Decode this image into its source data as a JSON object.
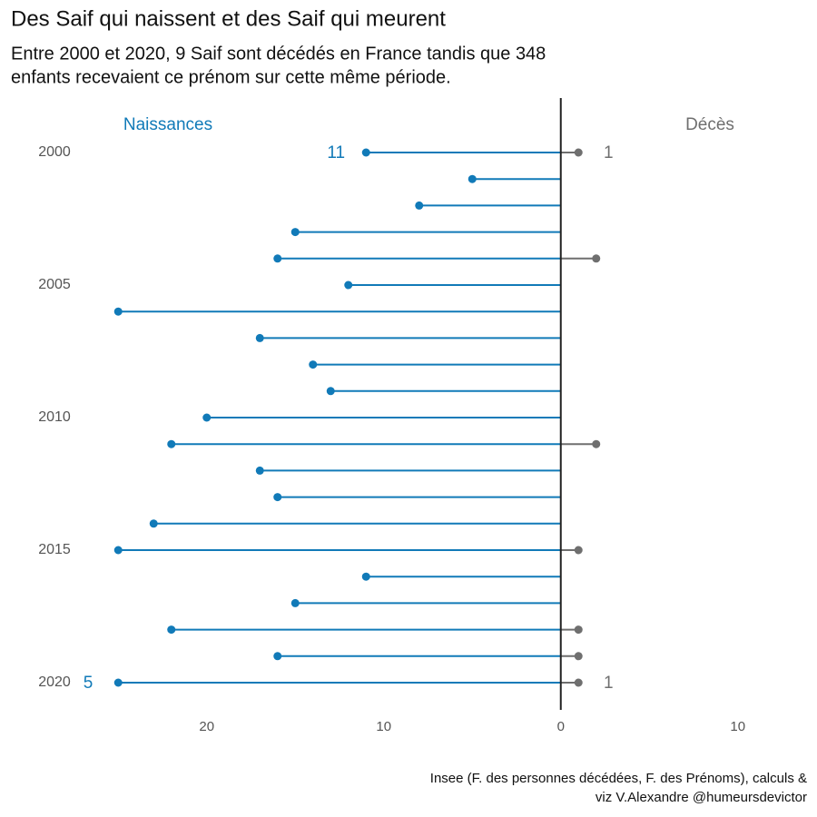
{
  "chart_data": {
    "type": "lollipop",
    "title": "Des Saif qui naissent et des Saif qui meurent",
    "subtitle": [
      "Entre 2000 et 2020, 9 Saif sont décédés en France tandis que 348",
      "enfants recevaient ce prénom sur cette même période."
    ],
    "caption": [
      "Insee (F. des personnes décédées, F. des Prénoms), calculs &",
      "viz V.Alexandre @humeursdevictor"
    ],
    "categories": [
      "2000",
      null,
      null,
      null,
      null,
      "2005",
      null,
      null,
      null,
      null,
      "2010",
      null,
      null,
      null,
      null,
      "2015",
      null,
      null,
      null,
      null,
      "2020"
    ],
    "series": [
      {
        "name": "Naissances",
        "color": "#117ab8",
        "side": "left",
        "values": [
          11,
          5,
          8,
          15,
          16,
          12,
          25,
          17,
          14,
          13,
          20,
          22,
          17,
          16,
          23,
          25,
          11,
          15,
          22,
          16,
          25
        ],
        "value_labels": [
          "11",
          null,
          null,
          null,
          null,
          null,
          null,
          null,
          null,
          null,
          null,
          null,
          null,
          null,
          null,
          null,
          null,
          null,
          null,
          null,
          null
        ]
      },
      {
        "name": "Décès",
        "color": "#6f6f6f",
        "side": "right",
        "values": [
          1,
          0,
          0,
          0,
          2,
          0,
          0,
          0,
          0,
          0,
          0,
          2,
          0,
          0,
          0,
          1,
          0,
          0,
          1,
          1,
          1
        ],
        "value_labels": [
          "1",
          null,
          null,
          null,
          null,
          null,
          null,
          null,
          null,
          null,
          null,
          null,
          null,
          null,
          null,
          null,
          null,
          null,
          null,
          null,
          "1"
        ]
      }
    ],
    "annotations": [
      "5"
    ],
    "xlim": [
      -26.5,
      11.5
    ],
    "xticks": [
      {
        "value": -20,
        "label": "20"
      },
      {
        "value": -10,
        "label": "10"
      },
      0,
      10
    ]
  }
}
